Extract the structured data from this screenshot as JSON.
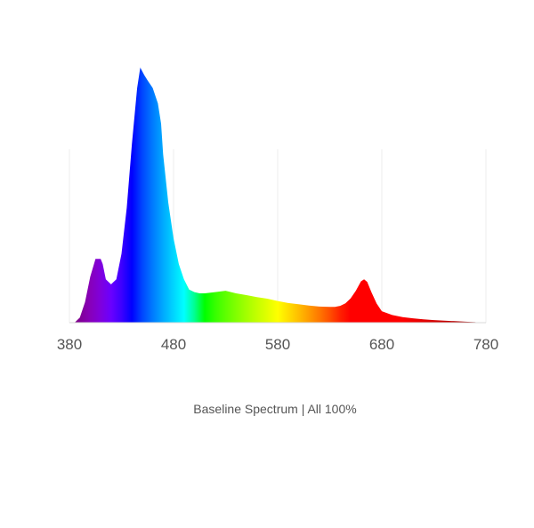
{
  "caption": "Baseline Spectrum  | All 100%",
  "chart_data": {
    "type": "area",
    "title": "",
    "xlabel": "",
    "ylabel": "",
    "xlim": [
      380,
      780
    ],
    "ylim": [
      0,
      1
    ],
    "grid": true,
    "legend": "none",
    "x_ticks": [
      380,
      480,
      580,
      680,
      780
    ],
    "x_tick_labels": [
      "380",
      "480",
      "580",
      "680",
      "780"
    ],
    "fill": "wavelength-color gradient (violet to deep red)",
    "series": [
      {
        "x": [
          385,
          390,
          395,
          400,
          405,
          410,
          412,
          415,
          420,
          425,
          430,
          435,
          440,
          445,
          448,
          452,
          455,
          460,
          465,
          468,
          470,
          475,
          480,
          485,
          490,
          495,
          500,
          505,
          510,
          520,
          530,
          540,
          550,
          560,
          570,
          580,
          590,
          600,
          610,
          620,
          630,
          635,
          640,
          645,
          650,
          655,
          660,
          663,
          666,
          670,
          675,
          680,
          690,
          700,
          710,
          720,
          730,
          740,
          750,
          760,
          770
        ],
        "y": [
          0.0,
          0.02,
          0.08,
          0.18,
          0.25,
          0.25,
          0.23,
          0.17,
          0.15,
          0.17,
          0.27,
          0.45,
          0.7,
          0.92,
          1.0,
          0.97,
          0.95,
          0.92,
          0.86,
          0.78,
          0.66,
          0.47,
          0.33,
          0.23,
          0.17,
          0.13,
          0.12,
          0.115,
          0.115,
          0.12,
          0.125,
          0.115,
          0.108,
          0.1,
          0.094,
          0.085,
          0.077,
          0.072,
          0.067,
          0.063,
          0.062,
          0.062,
          0.066,
          0.076,
          0.095,
          0.125,
          0.162,
          0.17,
          0.16,
          0.12,
          0.075,
          0.045,
          0.03,
          0.022,
          0.017,
          0.013,
          0.01,
          0.008,
          0.006,
          0.004,
          0.002
        ]
      }
    ]
  }
}
